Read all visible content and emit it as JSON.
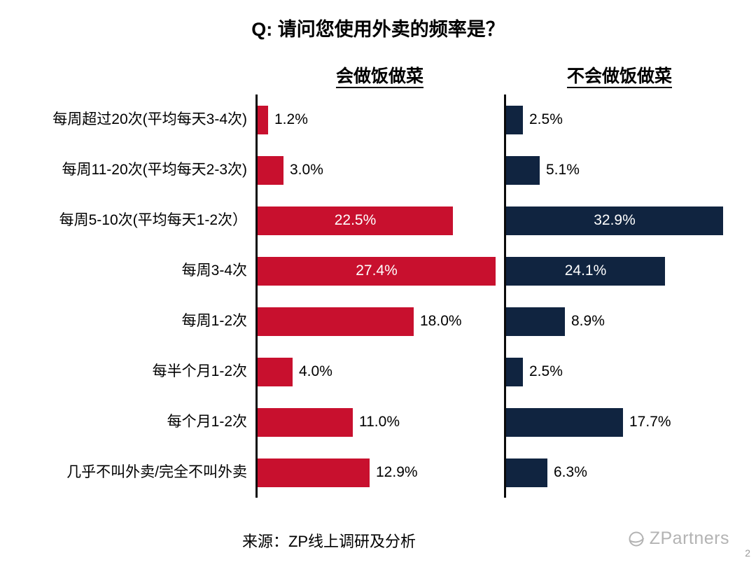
{
  "title": "Q: 请问您使用外卖的频率是？",
  "source": "来源：ZP线上调研及分析",
  "logo": {
    "name": "ZPartners",
    "page": "2"
  },
  "chart_data": {
    "type": "bar",
    "orientation": "horizontal",
    "title": "Q: 请问您使用外卖的频率是？",
    "categories": [
      "每周超过20次(平均每天3-4次)",
      "每周11-20次(平均每天2-3次)",
      "每周5-10次(平均每天1-2次）",
      "每周3-4次",
      "每周1-2次",
      "每半个月1-2次",
      "每个月1-2次",
      "几乎不叫外卖/完全不叫外卖"
    ],
    "series": [
      {
        "name": "会做饭做菜",
        "color": "#C8102E",
        "values": [
          1.2,
          3.0,
          22.5,
          27.4,
          18.0,
          4.0,
          11.0,
          12.9
        ]
      },
      {
        "name": "不会做饭做菜",
        "color": "#102440",
        "values": [
          2.5,
          5.1,
          32.9,
          24.1,
          8.9,
          2.5,
          17.7,
          6.3
        ]
      }
    ],
    "value_suffix": "%",
    "inside_label_threshold": 20,
    "xlim_left": [
      0,
      28.6
    ],
    "xlim_right": [
      0,
      35.0
    ],
    "legend_position": "top",
    "grid": false
  }
}
